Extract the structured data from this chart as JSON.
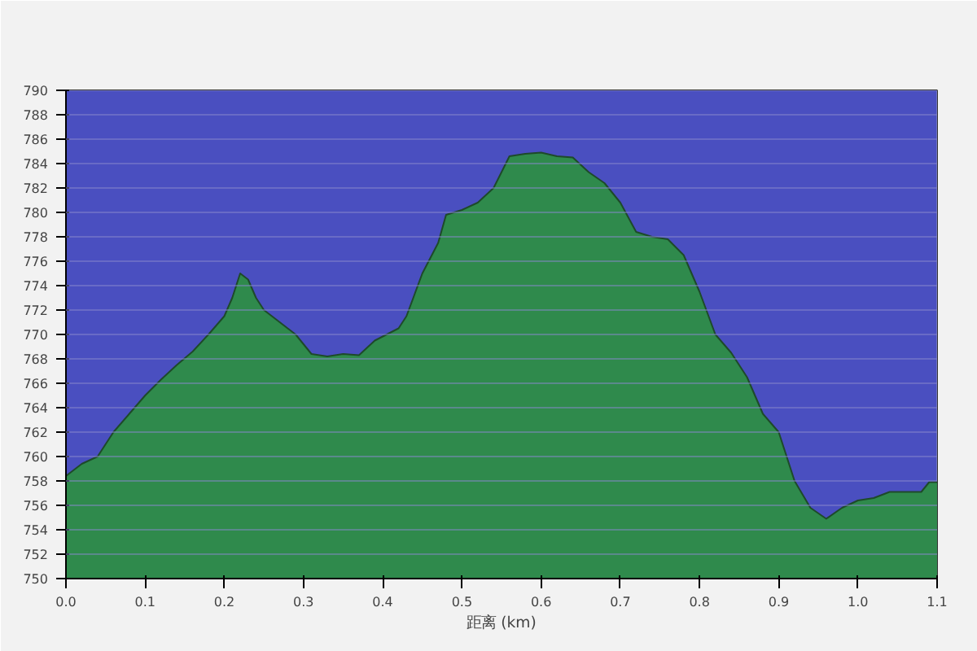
{
  "chart_data": {
    "type": "area",
    "xlabel": "距离 (km)",
    "x": [
      0.0,
      0.02,
      0.04,
      0.06,
      0.08,
      0.1,
      0.12,
      0.14,
      0.16,
      0.18,
      0.2,
      0.21,
      0.22,
      0.23,
      0.24,
      0.25,
      0.27,
      0.29,
      0.31,
      0.33,
      0.35,
      0.37,
      0.39,
      0.42,
      0.43,
      0.45,
      0.47,
      0.48,
      0.5,
      0.52,
      0.54,
      0.56,
      0.58,
      0.6,
      0.62,
      0.64,
      0.66,
      0.68,
      0.7,
      0.72,
      0.74,
      0.76,
      0.78,
      0.8,
      0.82,
      0.84,
      0.86,
      0.88,
      0.9,
      0.92,
      0.94,
      0.96,
      0.98,
      1.0,
      1.02,
      1.04,
      1.06,
      1.08,
      1.09,
      1.1
    ],
    "series": [
      {
        "color": "#2f8a4c",
        "values": [
          758.4,
          759.4,
          760,
          762,
          763.5,
          765,
          766.3,
          767.5,
          768.6,
          770,
          771.5,
          773,
          775,
          774.5,
          773,
          772,
          771,
          770,
          768.4,
          768.2,
          768.4,
          768.3,
          769.5,
          770.5,
          771.5,
          775,
          777.5,
          779.8,
          780.2,
          780.8,
          782,
          784.6,
          784.8,
          784.9,
          784.6,
          784.5,
          783.3,
          782.4,
          780.8,
          778.4,
          778,
          777.8,
          776.5,
          773.5,
          770,
          768.5,
          766.5,
          763.5,
          762,
          758,
          755.8,
          754.9,
          755.8,
          756.4,
          756.6,
          757.1,
          757.1,
          757.1,
          757.9,
          757.9
        ]
      }
    ],
    "xlim": [
      0,
      1.1
    ],
    "ylim": [
      750,
      790
    ],
    "xticks": [
      {
        "value": 0,
        "label": "0.0"
      },
      0.1,
      0.2,
      0.3,
      0.4,
      0.5,
      0.6,
      0.7,
      0.8,
      0.9,
      {
        "value": 1,
        "label": "1.0"
      },
      1.1
    ],
    "yticks": [
      750,
      752,
      754,
      756,
      758,
      760,
      762,
      764,
      766,
      768,
      770,
      772,
      774,
      776,
      778,
      780,
      782,
      784,
      786,
      788,
      790
    ],
    "bands": [
      {
        "axis": "y",
        "from": 750,
        "to": 790,
        "color": "#4a4fc0"
      }
    ],
    "grid": "y"
  }
}
